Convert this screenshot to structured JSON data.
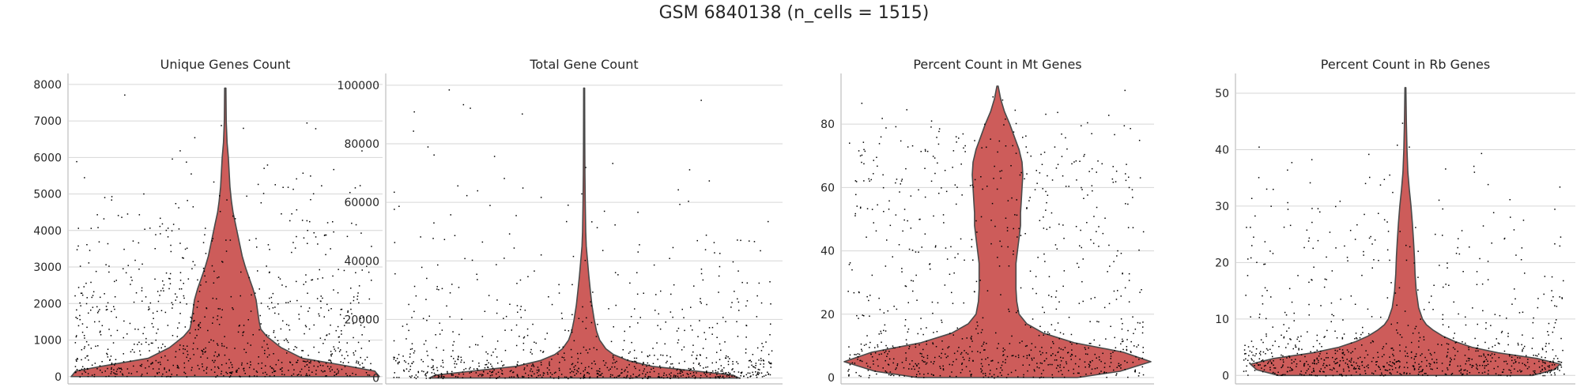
{
  "figure": {
    "title": "GSM 6840138 (n_cells = 1515)"
  },
  "colors": {
    "violin_fill": "#cd5c5a",
    "violin_edge": "#4a4a4a",
    "points": "#000000",
    "grid": "#d6d6d6",
    "axis": "#bdbdbd"
  },
  "chart_data": [
    {
      "type": "violin",
      "title": "Unique Genes Count",
      "ylim": [
        -200,
        8300
      ],
      "yticks": [
        0,
        1000,
        2000,
        3000,
        4000,
        5000,
        6000,
        7000,
        8000
      ],
      "ytick_labels": [
        "0",
        "1000",
        "2000",
        "3000",
        "4000",
        "5000",
        "6000",
        "7000",
        "8000"
      ],
      "grid": true,
      "n_points": 1515,
      "max": 7900,
      "density": [
        [
          0,
          1.0
        ],
        [
          150,
          0.97
        ],
        [
          300,
          0.78
        ],
        [
          500,
          0.5
        ],
        [
          800,
          0.36
        ],
        [
          1100,
          0.27
        ],
        [
          1300,
          0.23
        ],
        [
          1500,
          0.22
        ],
        [
          1800,
          0.21
        ],
        [
          2100,
          0.2
        ],
        [
          2400,
          0.18
        ],
        [
          2700,
          0.155
        ],
        [
          3000,
          0.13
        ],
        [
          3300,
          0.11
        ],
        [
          3600,
          0.095
        ],
        [
          3900,
          0.08
        ],
        [
          4200,
          0.065
        ],
        [
          4500,
          0.05
        ],
        [
          4800,
          0.04
        ],
        [
          5200,
          0.03
        ],
        [
          5600,
          0.025
        ],
        [
          6000,
          0.02
        ],
        [
          6400,
          0.012
        ],
        [
          7000,
          0.006
        ],
        [
          7900,
          0.004
        ]
      ]
    },
    {
      "type": "violin",
      "title": "Total Gene Count",
      "ylim": [
        -2000,
        104000
      ],
      "yticks": [
        0,
        20000,
        40000,
        60000,
        80000,
        100000
      ],
      "ytick_labels": [
        "0",
        "20000",
        "40000",
        "60000",
        "80000",
        "100000"
      ],
      "grid": true,
      "n_points": 1515,
      "max": 99000,
      "density": [
        [
          0,
          1.0
        ],
        [
          1000,
          0.96
        ],
        [
          2500,
          0.7
        ],
        [
          4000,
          0.44
        ],
        [
          6000,
          0.28
        ],
        [
          8000,
          0.19
        ],
        [
          10000,
          0.14
        ],
        [
          13000,
          0.1
        ],
        [
          16000,
          0.08
        ],
        [
          20000,
          0.065
        ],
        [
          25000,
          0.05
        ],
        [
          30000,
          0.04
        ],
        [
          35000,
          0.03
        ],
        [
          40000,
          0.022
        ],
        [
          45000,
          0.014
        ],
        [
          50000,
          0.01
        ],
        [
          60000,
          0.007
        ],
        [
          70000,
          0.005
        ],
        [
          80000,
          0.004
        ],
        [
          99000,
          0.003
        ]
      ]
    },
    {
      "type": "violin",
      "title": "Percent Count in Mt Genes",
      "ylim": [
        -2,
        96
      ],
      "yticks": [
        0,
        20,
        40,
        60,
        80
      ],
      "ytick_labels": [
        "0",
        "20",
        "40",
        "60",
        "80"
      ],
      "grid": true,
      "n_points": 1515,
      "max": 92,
      "density": [
        [
          0,
          0.52
        ],
        [
          2,
          0.8
        ],
        [
          5,
          1.0
        ],
        [
          8,
          0.82
        ],
        [
          11,
          0.5
        ],
        [
          14,
          0.3
        ],
        [
          17,
          0.19
        ],
        [
          20,
          0.14
        ],
        [
          24,
          0.125
        ],
        [
          28,
          0.12
        ],
        [
          32,
          0.12
        ],
        [
          36,
          0.12
        ],
        [
          40,
          0.13
        ],
        [
          44,
          0.14
        ],
        [
          48,
          0.15
        ],
        [
          52,
          0.15
        ],
        [
          56,
          0.155
        ],
        [
          60,
          0.16
        ],
        [
          64,
          0.165
        ],
        [
          68,
          0.16
        ],
        [
          72,
          0.14
        ],
        [
          76,
          0.11
        ],
        [
          80,
          0.08
        ],
        [
          84,
          0.045
        ],
        [
          88,
          0.02
        ],
        [
          92,
          0.004
        ]
      ]
    },
    {
      "type": "violin",
      "title": "Percent Count in Rb Genes",
      "ylim": [
        -1.5,
        53.5
      ],
      "yticks": [
        0,
        10,
        20,
        30,
        40,
        50
      ],
      "ytick_labels": [
        "0",
        "10",
        "20",
        "30",
        "40",
        "50"
      ],
      "grid": true,
      "n_points": 1515,
      "max": 51,
      "density": [
        [
          0,
          0.82
        ],
        [
          1,
          0.96
        ],
        [
          2,
          1.0
        ],
        [
          3,
          0.85
        ],
        [
          4,
          0.6
        ],
        [
          5,
          0.43
        ],
        [
          6,
          0.32
        ],
        [
          7,
          0.24
        ],
        [
          8,
          0.18
        ],
        [
          9,
          0.135
        ],
        [
          10,
          0.11
        ],
        [
          12,
          0.085
        ],
        [
          15,
          0.07
        ],
        [
          18,
          0.062
        ],
        [
          21,
          0.058
        ],
        [
          24,
          0.052
        ],
        [
          27,
          0.045
        ],
        [
          30,
          0.036
        ],
        [
          33,
          0.025
        ],
        [
          36,
          0.016
        ],
        [
          40,
          0.01
        ],
        [
          45,
          0.006
        ],
        [
          51,
          0.003
        ]
      ]
    }
  ]
}
